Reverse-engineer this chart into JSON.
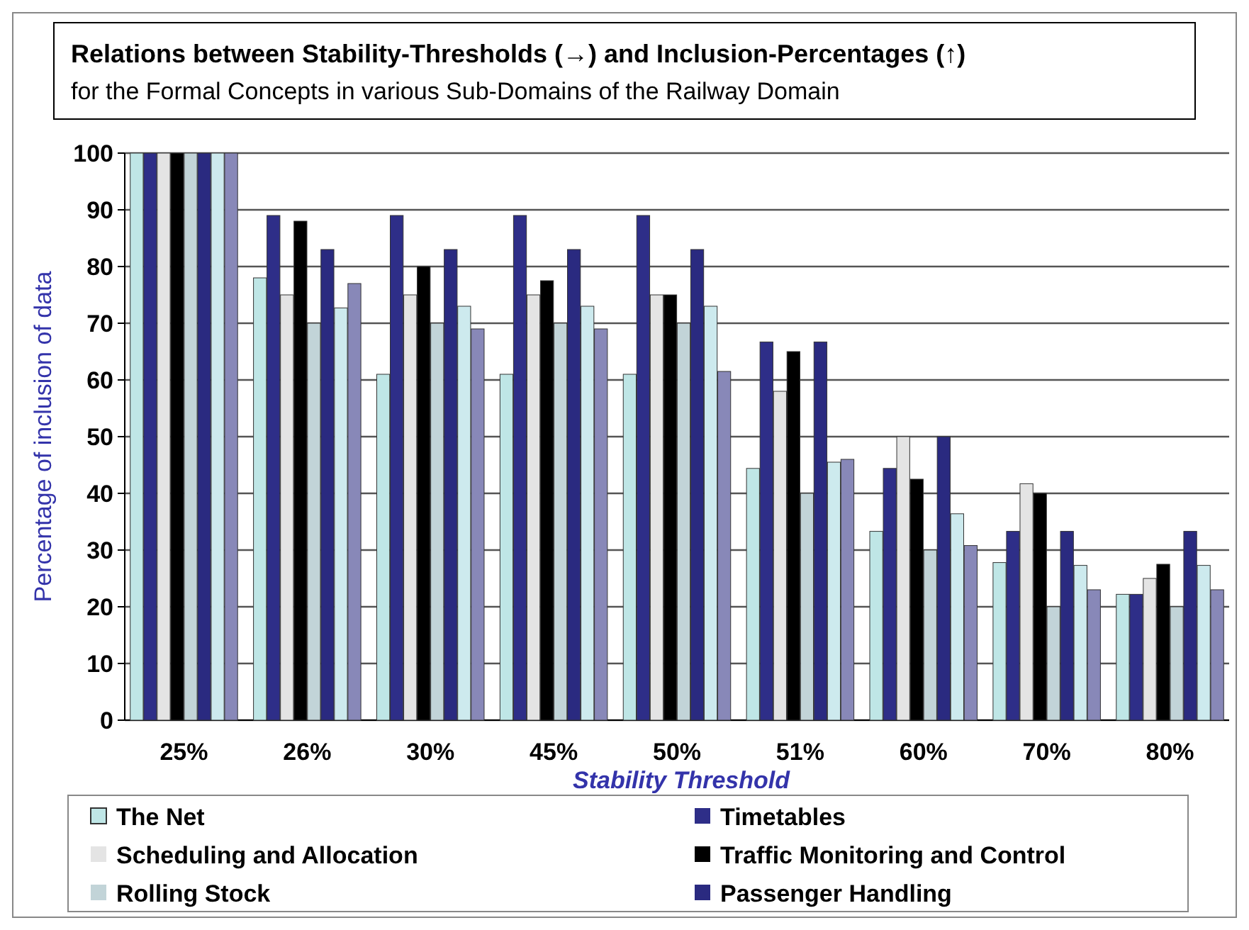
{
  "chart_data": {
    "type": "bar",
    "title": "Relations between Stability-Thresholds (→) and Inclusion-Percentages (↑)",
    "subtitle": "for the Formal Concepts in various Sub-Domains of the Railway Domain",
    "xlabel": "Stability Threshold",
    "ylabel": "Percentage of inclusion of data",
    "categories": [
      "25%",
      "26%",
      "30%",
      "45%",
      "50%",
      "51%",
      "60%",
      "70%",
      "80%"
    ],
    "series": [
      {
        "name": "The Net",
        "color": "#bfe6e6",
        "values": [
          100,
          78,
          61,
          61,
          61,
          44.4,
          33.3,
          27.8,
          22.2
        ]
      },
      {
        "name": "Timetables",
        "color": "#2e2e88",
        "values": [
          100,
          89,
          89,
          89,
          89,
          66.7,
          44.4,
          33.3,
          22.2
        ]
      },
      {
        "name": "Scheduling and Allocation",
        "color": "#e4e4e4",
        "values": [
          100,
          75,
          75,
          75,
          75,
          58,
          50,
          41.7,
          25
        ]
      },
      {
        "name": "Traffic Monitoring and Control",
        "color": "#000000",
        "values": [
          100,
          88,
          80,
          77.5,
          75,
          65,
          42.5,
          40,
          27.5
        ]
      },
      {
        "name": "Rolling Stock",
        "color": "#c2d4d8",
        "values": [
          100,
          70,
          70,
          70,
          70,
          40,
          30,
          20,
          20
        ]
      },
      {
        "name": "Passenger Handling",
        "color": "#2a2a80",
        "values": [
          100,
          83,
          83,
          83,
          83,
          66.7,
          50,
          33.3,
          33.3
        ]
      },
      {
        "color": "#cdeaee",
        "values": [
          100,
          72.7,
          73,
          73,
          73,
          45.5,
          36.4,
          27.3,
          27.3
        ]
      },
      {
        "color": "#8888b8",
        "values": [
          100,
          77,
          69,
          69,
          61.5,
          46,
          30.8,
          23,
          23
        ]
      }
    ],
    "ylim": [
      0,
      100
    ],
    "yticks": [
      0,
      10,
      20,
      30,
      40,
      50,
      60,
      70,
      80,
      90,
      100
    ],
    "grid": "y",
    "legend": "bottom"
  }
}
